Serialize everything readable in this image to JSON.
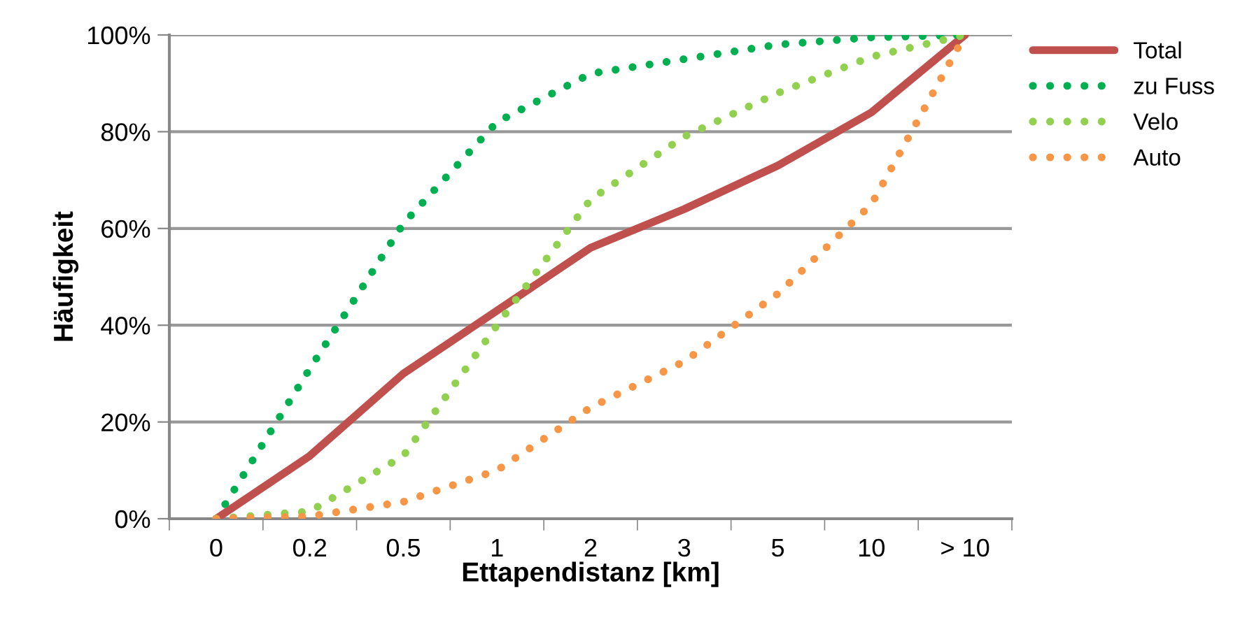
{
  "chart_data": {
    "type": "line",
    "xlabel": "Ettapendistanz [km]",
    "ylabel": "Häufigkeit",
    "categories": [
      "0",
      "0.2",
      "0.5",
      "1",
      "2",
      "3",
      "5",
      "10",
      "> 10"
    ],
    "series": [
      {
        "name": "Total",
        "color": "#c0504d",
        "line_style": "solid",
        "values": [
          0,
          13,
          30,
          43,
          56,
          64,
          73,
          84,
          100
        ]
      },
      {
        "name": "zu Fuss",
        "color": "#00b050",
        "line_style": "dotted",
        "values": [
          0,
          31,
          61,
          82,
          92,
          95,
          98,
          99.5,
          100
        ]
      },
      {
        "name": "Velo",
        "color": "#92d050",
        "line_style": "dotted",
        "values": [
          0,
          1.5,
          13,
          40,
          66,
          79,
          88,
          95.5,
          100
        ]
      },
      {
        "name": "Auto",
        "color": "#f79646",
        "line_style": "dotted",
        "values": [
          0,
          0.5,
          3.5,
          10,
          23,
          32.5,
          46.5,
          65,
          100
        ]
      }
    ],
    "ylim": [
      0,
      100
    ],
    "yticks": [
      {
        "value": 0,
        "label": "0%"
      },
      {
        "value": 20,
        "label": "20%"
      },
      {
        "value": 40,
        "label": "40%"
      },
      {
        "value": 60,
        "label": "60%"
      },
      {
        "value": 80,
        "label": "80%"
      },
      {
        "value": 100,
        "label": "100%"
      }
    ],
    "grid": "y",
    "legend": "top right",
    "marker": "none"
  }
}
